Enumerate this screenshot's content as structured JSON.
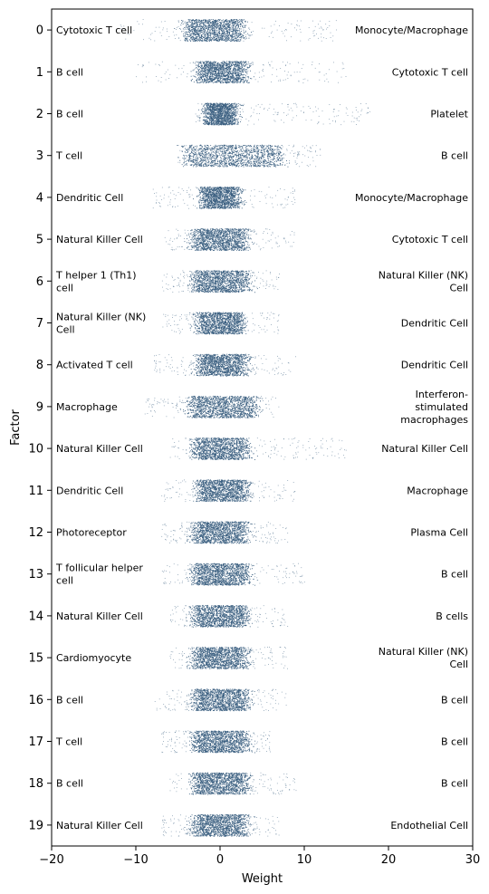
{
  "chart_data": {
    "type": "scatter",
    "title": "",
    "xlabel": "Weight",
    "ylabel": "Factor",
    "xlim": [
      -20,
      30
    ],
    "ylim": [
      -0.5,
      19.5
    ],
    "y_inverted": true,
    "grid": false,
    "legend": "none",
    "point_color": "#3b5f80",
    "xticks": [
      -20,
      -10,
      0,
      10,
      20,
      30
    ],
    "yticks": [
      0,
      1,
      2,
      3,
      4,
      5,
      6,
      7,
      8,
      9,
      10,
      11,
      12,
      13,
      14,
      15,
      16,
      17,
      18,
      19
    ],
    "factors": [
      {
        "factor": 0,
        "left_label": [
          "Cytotoxic T cell"
        ],
        "right_label": [
          "Monocyte/Macrophage"
        ],
        "core": [
          -4,
          2.5
        ],
        "spread": [
          -12,
          14
        ]
      },
      {
        "factor": 1,
        "left_label": [
          "B cell"
        ],
        "right_label": [
          "Cytotoxic T cell"
        ],
        "core": [
          -2.5,
          3
        ],
        "spread": [
          -10,
          15
        ]
      },
      {
        "factor": 2,
        "left_label": [
          "B cell"
        ],
        "right_label": [
          "Platelet"
        ],
        "core": [
          -1.5,
          1.5
        ],
        "spread": [
          -3,
          18
        ]
      },
      {
        "factor": 3,
        "left_label": [
          "T cell"
        ],
        "right_label": [
          "B cell"
        ],
        "core": [
          -4,
          7
        ],
        "spread": [
          -5,
          12
        ]
      },
      {
        "factor": 4,
        "left_label": [
          "Dendritic Cell"
        ],
        "right_label": [
          "Monocyte/Macrophage"
        ],
        "core": [
          -2,
          2
        ],
        "spread": [
          -8,
          9
        ]
      },
      {
        "factor": 5,
        "left_label": [
          "Natural Killer Cell"
        ],
        "right_label": [
          "Cytotoxic T cell"
        ],
        "core": [
          -3,
          3
        ],
        "spread": [
          -7,
          9
        ]
      },
      {
        "factor": 6,
        "left_label": [
          "T helper 1 (Th1)",
          "cell"
        ],
        "right_label": [
          "Natural Killer (NK)",
          "Cell"
        ],
        "core": [
          -3,
          3
        ],
        "spread": [
          -7,
          7
        ]
      },
      {
        "factor": 7,
        "left_label": [
          "Natural Killer (NK)",
          "Cell"
        ],
        "right_label": [
          "Dendritic Cell"
        ],
        "core": [
          -2.5,
          2.5
        ],
        "spread": [
          -7,
          7
        ]
      },
      {
        "factor": 8,
        "left_label": [
          "Activated T cell"
        ],
        "right_label": [
          "Dendritic Cell"
        ],
        "core": [
          -2.5,
          3
        ],
        "spread": [
          -8,
          9
        ]
      },
      {
        "factor": 9,
        "left_label": [
          "Macrophage"
        ],
        "right_label": [
          "Interferon-",
          "stimulated",
          "macrophages"
        ],
        "core": [
          -3.5,
          4
        ],
        "spread": [
          -9,
          7
        ]
      },
      {
        "factor": 10,
        "left_label": [
          "Natural Killer Cell"
        ],
        "right_label": [
          "Natural Killer Cell"
        ],
        "core": [
          -3,
          3
        ],
        "spread": [
          -6,
          15
        ]
      },
      {
        "factor": 11,
        "left_label": [
          "Dendritic Cell"
        ],
        "right_label": [
          "Macrophage"
        ],
        "core": [
          -2.5,
          3
        ],
        "spread": [
          -7,
          9
        ]
      },
      {
        "factor": 12,
        "left_label": [
          "Photoreceptor"
        ],
        "right_label": [
          "Plasma Cell"
        ],
        "core": [
          -3,
          3
        ],
        "spread": [
          -7,
          8
        ]
      },
      {
        "factor": 13,
        "left_label": [
          "T follicular helper",
          "cell"
        ],
        "right_label": [
          "B cell"
        ],
        "core": [
          -3,
          3
        ],
        "spread": [
          -7,
          10
        ]
      },
      {
        "factor": 14,
        "left_label": [
          "Natural Killer Cell"
        ],
        "right_label": [
          "B cells"
        ],
        "core": [
          -3,
          3
        ],
        "spread": [
          -6,
          8
        ]
      },
      {
        "factor": 15,
        "left_label": [
          "Cardiomyocyte"
        ],
        "right_label": [
          "Natural Killer (NK)",
          "Cell"
        ],
        "core": [
          -3,
          3
        ],
        "spread": [
          -6,
          8
        ]
      },
      {
        "factor": 16,
        "left_label": [
          "B cell"
        ],
        "right_label": [
          "B cell"
        ],
        "core": [
          -3,
          3
        ],
        "spread": [
          -8,
          8
        ]
      },
      {
        "factor": 17,
        "left_label": [
          "T cell"
        ],
        "right_label": [
          "B cell"
        ],
        "core": [
          -3,
          3
        ],
        "spread": [
          -7,
          6
        ]
      },
      {
        "factor": 18,
        "left_label": [
          "B cell"
        ],
        "right_label": [
          "B cell"
        ],
        "core": [
          -3,
          3
        ],
        "spread": [
          -6,
          9
        ]
      },
      {
        "factor": 19,
        "left_label": [
          "Natural Killer Cell"
        ],
        "right_label": [
          "Endothelial Cell"
        ],
        "core": [
          -3,
          3
        ],
        "spread": [
          -7,
          7
        ]
      }
    ]
  }
}
